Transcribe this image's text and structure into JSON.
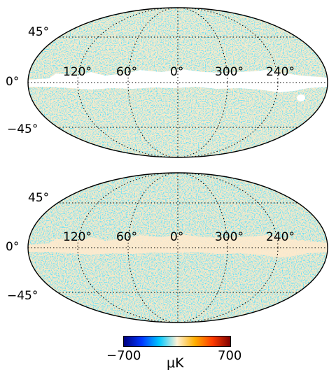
{
  "maps": [
    {
      "id": "top",
      "lat_labels": [
        "45°",
        "0°",
        "−45°"
      ],
      "lon_labels": [
        "120°",
        "60°",
        "0°",
        "300°",
        "240°"
      ],
      "mask": "white"
    },
    {
      "id": "bottom",
      "lat_labels": [
        "45°",
        "0°",
        "−45°"
      ],
      "lon_labels": [
        "120°",
        "60°",
        "0°",
        "300°",
        "240°"
      ],
      "mask": "inpainted"
    }
  ],
  "colorbar": {
    "min_label": "−700",
    "max_label": "700",
    "unit": "μK",
    "colors": [
      "#00007f",
      "#0036ff",
      "#00c8ff",
      "#fff3d7",
      "#ffaf00",
      "#ff3a00",
      "#7f0000"
    ]
  }
}
